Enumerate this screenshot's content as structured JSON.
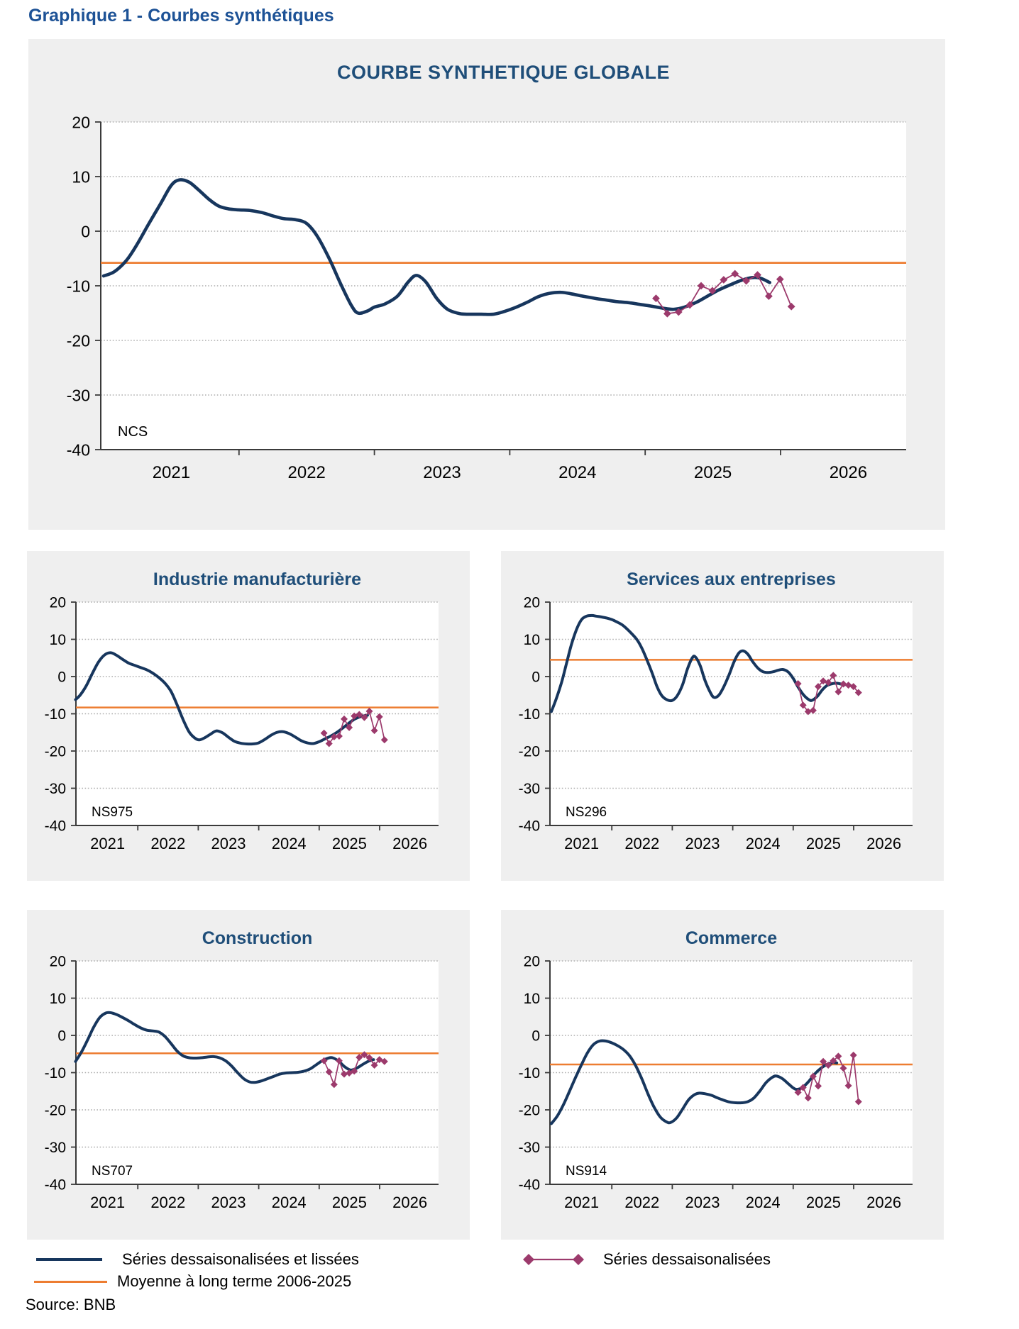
{
  "page": {
    "heading": "Graphique 1 - Courbes synthétiques",
    "source": "Source: BNB"
  },
  "legend": {
    "smoothed": "Séries dessaisonalisées et lissées",
    "mean": "Moyenne à long terme 2006-2025",
    "raw": "Séries dessaisonalisées"
  },
  "colors": {
    "navy": "#17365d",
    "orange": "#ed7d31",
    "purple": "#9c3a6c",
    "title_blue": "#1f4e79",
    "heading_blue": "#1d5296",
    "panel_gray": "#efefef",
    "grid": "#aeaeae",
    "axis": "#3a3a3a"
  },
  "axis": {
    "ylim": [
      -40,
      20
    ],
    "yticks": [
      20,
      10,
      0,
      -10,
      -20,
      -30,
      -40
    ],
    "xlim": [
      2020.95,
      2026.95
    ],
    "xtick_years": [
      2022,
      2023,
      2024,
      2025,
      2026
    ],
    "xlabel_years": [
      2021,
      2022,
      2023,
      2024,
      2025,
      2026
    ],
    "grid": "dotted horizontal",
    "legend_position": "bottom"
  },
  "chart_data": [
    {
      "type": "line",
      "title": "COURBE SYNTHETIQUE GLOBALE",
      "code": "NCS",
      "long_term_mean": -5.8,
      "smoothed": [
        [
          2021.0,
          -8.2
        ],
        [
          2021.08,
          -7.4
        ],
        [
          2021.17,
          -5.3
        ],
        [
          2021.25,
          -2.3
        ],
        [
          2021.33,
          1.2
        ],
        [
          2021.42,
          5.0
        ],
        [
          2021.5,
          8.4
        ],
        [
          2021.56,
          9.4
        ],
        [
          2021.63,
          9.0
        ],
        [
          2021.7,
          7.6
        ],
        [
          2021.78,
          5.8
        ],
        [
          2021.85,
          4.6
        ],
        [
          2021.92,
          4.1
        ],
        [
          2022.0,
          3.9
        ],
        [
          2022.08,
          3.8
        ],
        [
          2022.17,
          3.4
        ],
        [
          2022.25,
          2.8
        ],
        [
          2022.33,
          2.3
        ],
        [
          2022.42,
          2.1
        ],
        [
          2022.5,
          1.4
        ],
        [
          2022.58,
          -1.0
        ],
        [
          2022.67,
          -5.2
        ],
        [
          2022.75,
          -9.6
        ],
        [
          2022.83,
          -13.6
        ],
        [
          2022.88,
          -15.0
        ],
        [
          2022.95,
          -14.6
        ],
        [
          2023.0,
          -13.9
        ],
        [
          2023.08,
          -13.3
        ],
        [
          2023.17,
          -11.9
        ],
        [
          2023.25,
          -9.3
        ],
        [
          2023.31,
          -8.1
        ],
        [
          2023.38,
          -9.3
        ],
        [
          2023.46,
          -12.3
        ],
        [
          2023.54,
          -14.3
        ],
        [
          2023.63,
          -15.1
        ],
        [
          2023.71,
          -15.2
        ],
        [
          2023.79,
          -15.2
        ],
        [
          2023.88,
          -15.2
        ],
        [
          2023.96,
          -14.7
        ],
        [
          2024.04,
          -14.0
        ],
        [
          2024.13,
          -13.0
        ],
        [
          2024.21,
          -12.0
        ],
        [
          2024.29,
          -11.4
        ],
        [
          2024.38,
          -11.2
        ],
        [
          2024.46,
          -11.5
        ],
        [
          2024.54,
          -11.9
        ],
        [
          2024.63,
          -12.3
        ],
        [
          2024.71,
          -12.6
        ],
        [
          2024.79,
          -12.9
        ],
        [
          2024.88,
          -13.1
        ],
        [
          2024.96,
          -13.4
        ],
        [
          2025.04,
          -13.7
        ],
        [
          2025.13,
          -14.1
        ],
        [
          2025.21,
          -14.3
        ],
        [
          2025.29,
          -13.9
        ],
        [
          2025.38,
          -13.0
        ],
        [
          2025.46,
          -11.9
        ],
        [
          2025.54,
          -10.8
        ],
        [
          2025.63,
          -9.8
        ],
        [
          2025.71,
          -9.0
        ],
        [
          2025.79,
          -8.5
        ],
        [
          2025.85,
          -8.6
        ],
        [
          2025.92,
          -9.4
        ]
      ],
      "raw": {
        "x_start": 2025.08,
        "x_step": 0.0833,
        "values": [
          -12.3,
          -15.1,
          -14.8,
          -13.5,
          -10.0,
          -10.9,
          -8.9,
          -7.8,
          -9.1,
          -8.0,
          -11.9,
          -8.8,
          -13.8
        ]
      }
    },
    {
      "type": "line",
      "title": "Industrie manufacturière",
      "code": "NS975",
      "long_term_mean": -8.3,
      "smoothed": [
        [
          2020.97,
          -6.2
        ],
        [
          2021.05,
          -4.9
        ],
        [
          2021.15,
          -2.4
        ],
        [
          2021.25,
          0.9
        ],
        [
          2021.35,
          3.9
        ],
        [
          2021.45,
          5.8
        ],
        [
          2021.55,
          6.4
        ],
        [
          2021.65,
          5.7
        ],
        [
          2021.75,
          4.6
        ],
        [
          2021.85,
          3.6
        ],
        [
          2021.95,
          3.0
        ],
        [
          2022.05,
          2.4
        ],
        [
          2022.15,
          1.8
        ],
        [
          2022.25,
          0.9
        ],
        [
          2022.35,
          -0.3
        ],
        [
          2022.45,
          -1.8
        ],
        [
          2022.55,
          -4.0
        ],
        [
          2022.65,
          -7.6
        ],
        [
          2022.75,
          -11.6
        ],
        [
          2022.85,
          -14.9
        ],
        [
          2022.95,
          -16.6
        ],
        [
          2023.02,
          -17.0
        ],
        [
          2023.1,
          -16.5
        ],
        [
          2023.2,
          -15.5
        ],
        [
          2023.3,
          -14.6
        ],
        [
          2023.4,
          -15.1
        ],
        [
          2023.5,
          -16.3
        ],
        [
          2023.6,
          -17.4
        ],
        [
          2023.7,
          -17.9
        ],
        [
          2023.8,
          -18.1
        ],
        [
          2023.9,
          -18.1
        ],
        [
          2024.0,
          -17.8
        ],
        [
          2024.1,
          -16.9
        ],
        [
          2024.2,
          -15.8
        ],
        [
          2024.3,
          -15.0
        ],
        [
          2024.4,
          -14.8
        ],
        [
          2024.5,
          -15.3
        ],
        [
          2024.6,
          -16.2
        ],
        [
          2024.7,
          -17.2
        ],
        [
          2024.8,
          -17.8
        ],
        [
          2024.9,
          -18.0
        ],
        [
          2025.0,
          -17.5
        ],
        [
          2025.1,
          -16.7
        ],
        [
          2025.2,
          -15.9
        ],
        [
          2025.3,
          -14.9
        ],
        [
          2025.4,
          -13.7
        ],
        [
          2025.5,
          -12.4
        ],
        [
          2025.6,
          -11.3
        ],
        [
          2025.7,
          -10.7
        ],
        [
          2025.8,
          -10.4
        ]
      ],
      "raw": {
        "x_start": 2025.08,
        "x_step": 0.0833,
        "values": [
          -15.2,
          -18.0,
          -16.2,
          -16.0,
          -11.4,
          -13.7,
          -10.6,
          -10.2,
          -11.0,
          -9.3,
          -14.5,
          -10.8,
          -17.0
        ]
      }
    },
    {
      "type": "line",
      "title": "Services aux entreprises",
      "code": "NS296",
      "long_term_mean": 4.5,
      "smoothed": [
        [
          2021.0,
          -9.4
        ],
        [
          2021.08,
          -6.0
        ],
        [
          2021.17,
          -1.5
        ],
        [
          2021.25,
          3.5
        ],
        [
          2021.33,
          8.5
        ],
        [
          2021.42,
          12.8
        ],
        [
          2021.5,
          15.3
        ],
        [
          2021.58,
          16.2
        ],
        [
          2021.67,
          16.4
        ],
        [
          2021.75,
          16.2
        ],
        [
          2021.83,
          16.0
        ],
        [
          2021.92,
          15.7
        ],
        [
          2022.0,
          15.3
        ],
        [
          2022.08,
          14.7
        ],
        [
          2022.17,
          13.9
        ],
        [
          2022.25,
          12.8
        ],
        [
          2022.33,
          11.5
        ],
        [
          2022.42,
          9.8
        ],
        [
          2022.5,
          7.5
        ],
        [
          2022.58,
          4.5
        ],
        [
          2022.67,
          0.8
        ],
        [
          2022.75,
          -2.8
        ],
        [
          2022.83,
          -5.2
        ],
        [
          2022.92,
          -6.3
        ],
        [
          2023.0,
          -6.4
        ],
        [
          2023.08,
          -5.2
        ],
        [
          2023.17,
          -2.2
        ],
        [
          2023.25,
          2.0
        ],
        [
          2023.33,
          5.0
        ],
        [
          2023.38,
          5.3
        ],
        [
          2023.46,
          3.0
        ],
        [
          2023.54,
          -1.0
        ],
        [
          2023.63,
          -4.3
        ],
        [
          2023.69,
          -5.6
        ],
        [
          2023.77,
          -5.0
        ],
        [
          2023.85,
          -2.8
        ],
        [
          2023.94,
          0.5
        ],
        [
          2024.02,
          3.9
        ],
        [
          2024.1,
          6.3
        ],
        [
          2024.17,
          6.9
        ],
        [
          2024.25,
          6.0
        ],
        [
          2024.33,
          4.0
        ],
        [
          2024.42,
          2.2
        ],
        [
          2024.5,
          1.3
        ],
        [
          2024.58,
          1.1
        ],
        [
          2024.67,
          1.3
        ],
        [
          2024.75,
          1.7
        ],
        [
          2024.83,
          1.9
        ],
        [
          2024.92,
          1.2
        ],
        [
          2025.0,
          -0.5
        ],
        [
          2025.08,
          -2.8
        ],
        [
          2025.17,
          -4.9
        ],
        [
          2025.25,
          -6.1
        ],
        [
          2025.31,
          -6.4
        ],
        [
          2025.4,
          -5.3
        ],
        [
          2025.48,
          -3.6
        ],
        [
          2025.56,
          -2.4
        ],
        [
          2025.65,
          -1.9
        ],
        [
          2025.73,
          -1.8
        ],
        [
          2025.81,
          -2.1
        ],
        [
          2025.85,
          -2.2
        ]
      ],
      "raw": {
        "x_start": 2025.08,
        "x_step": 0.0833,
        "values": [
          -1.9,
          -7.7,
          -9.4,
          -9.1,
          -2.7,
          -1.2,
          -1.6,
          0.3,
          -4.1,
          -2.0,
          -2.3,
          -2.7,
          -4.3
        ]
      }
    },
    {
      "type": "line",
      "title": "Construction",
      "code": "NS707",
      "long_term_mean": -4.8,
      "smoothed": [
        [
          2020.97,
          -7.0
        ],
        [
          2021.07,
          -4.4
        ],
        [
          2021.17,
          -1.2
        ],
        [
          2021.27,
          2.2
        ],
        [
          2021.37,
          4.8
        ],
        [
          2021.47,
          6.0
        ],
        [
          2021.55,
          6.1
        ],
        [
          2021.65,
          5.6
        ],
        [
          2021.75,
          4.8
        ],
        [
          2021.85,
          3.9
        ],
        [
          2021.95,
          2.9
        ],
        [
          2022.05,
          2.0
        ],
        [
          2022.15,
          1.4
        ],
        [
          2022.25,
          1.2
        ],
        [
          2022.35,
          0.9
        ],
        [
          2022.45,
          -0.3
        ],
        [
          2022.55,
          -2.2
        ],
        [
          2022.65,
          -4.2
        ],
        [
          2022.75,
          -5.5
        ],
        [
          2022.85,
          -6.0
        ],
        [
          2022.95,
          -6.1
        ],
        [
          2023.05,
          -6.0
        ],
        [
          2023.15,
          -5.8
        ],
        [
          2023.25,
          -5.7
        ],
        [
          2023.35,
          -6.0
        ],
        [
          2023.45,
          -6.8
        ],
        [
          2023.55,
          -8.2
        ],
        [
          2023.65,
          -10.0
        ],
        [
          2023.75,
          -11.6
        ],
        [
          2023.85,
          -12.5
        ],
        [
          2023.95,
          -12.6
        ],
        [
          2024.05,
          -12.2
        ],
        [
          2024.15,
          -11.6
        ],
        [
          2024.25,
          -11.0
        ],
        [
          2024.35,
          -10.4
        ],
        [
          2024.45,
          -10.1
        ],
        [
          2024.55,
          -10.0
        ],
        [
          2024.65,
          -9.9
        ],
        [
          2024.75,
          -9.6
        ],
        [
          2024.85,
          -9.0
        ],
        [
          2024.95,
          -7.9
        ],
        [
          2025.05,
          -6.8
        ],
        [
          2025.15,
          -6.1
        ],
        [
          2025.22,
          -6.0
        ],
        [
          2025.32,
          -6.9
        ],
        [
          2025.42,
          -8.4
        ],
        [
          2025.52,
          -9.3
        ],
        [
          2025.62,
          -8.8
        ],
        [
          2025.72,
          -7.8
        ],
        [
          2025.82,
          -6.9
        ],
        [
          2025.9,
          -6.5
        ]
      ],
      "raw": {
        "x_start": 2025.08,
        "x_step": 0.0833,
        "values": [
          -6.8,
          -9.8,
          -13.2,
          -6.8,
          -10.4,
          -10.1,
          -9.6,
          -5.9,
          -5.2,
          -6.0,
          -8.0,
          -6.5,
          -7.0
        ]
      }
    },
    {
      "type": "line",
      "title": "Commerce",
      "code": "NS914",
      "long_term_mean": -7.8,
      "smoothed": [
        [
          2021.0,
          -23.7
        ],
        [
          2021.1,
          -21.6
        ],
        [
          2021.2,
          -18.6
        ],
        [
          2021.3,
          -15.0
        ],
        [
          2021.4,
          -11.3
        ],
        [
          2021.5,
          -7.8
        ],
        [
          2021.6,
          -4.6
        ],
        [
          2021.7,
          -2.4
        ],
        [
          2021.8,
          -1.5
        ],
        [
          2021.9,
          -1.5
        ],
        [
          2022.0,
          -2.0
        ],
        [
          2022.1,
          -2.8
        ],
        [
          2022.2,
          -3.9
        ],
        [
          2022.3,
          -5.6
        ],
        [
          2022.4,
          -8.3
        ],
        [
          2022.5,
          -11.8
        ],
        [
          2022.6,
          -15.8
        ],
        [
          2022.7,
          -19.3
        ],
        [
          2022.8,
          -21.9
        ],
        [
          2022.9,
          -23.2
        ],
        [
          2022.97,
          -23.4
        ],
        [
          2023.07,
          -22.2
        ],
        [
          2023.17,
          -19.8
        ],
        [
          2023.27,
          -17.3
        ],
        [
          2023.37,
          -15.9
        ],
        [
          2023.45,
          -15.5
        ],
        [
          2023.55,
          -15.7
        ],
        [
          2023.65,
          -16.1
        ],
        [
          2023.75,
          -16.8
        ],
        [
          2023.85,
          -17.4
        ],
        [
          2023.95,
          -17.9
        ],
        [
          2024.05,
          -18.1
        ],
        [
          2024.15,
          -18.1
        ],
        [
          2024.25,
          -17.8
        ],
        [
          2024.35,
          -16.8
        ],
        [
          2024.45,
          -14.9
        ],
        [
          2024.55,
          -12.7
        ],
        [
          2024.65,
          -11.3
        ],
        [
          2024.72,
          -10.9
        ],
        [
          2024.82,
          -11.6
        ],
        [
          2024.92,
          -13.0
        ],
        [
          2025.0,
          -14.1
        ],
        [
          2025.06,
          -14.5
        ],
        [
          2025.16,
          -13.9
        ],
        [
          2025.26,
          -12.3
        ],
        [
          2025.36,
          -10.3
        ],
        [
          2025.46,
          -8.8
        ],
        [
          2025.56,
          -7.8
        ],
        [
          2025.66,
          -7.3
        ],
        [
          2025.72,
          -7.4
        ]
      ],
      "raw": {
        "x_start": 2025.08,
        "x_step": 0.0833,
        "values": [
          -15.3,
          -14.0,
          -16.8,
          -11.0,
          -13.6,
          -7.0,
          -8.0,
          -6.8,
          -5.6,
          -8.8,
          -13.5,
          -5.3,
          -17.8
        ]
      }
    }
  ]
}
